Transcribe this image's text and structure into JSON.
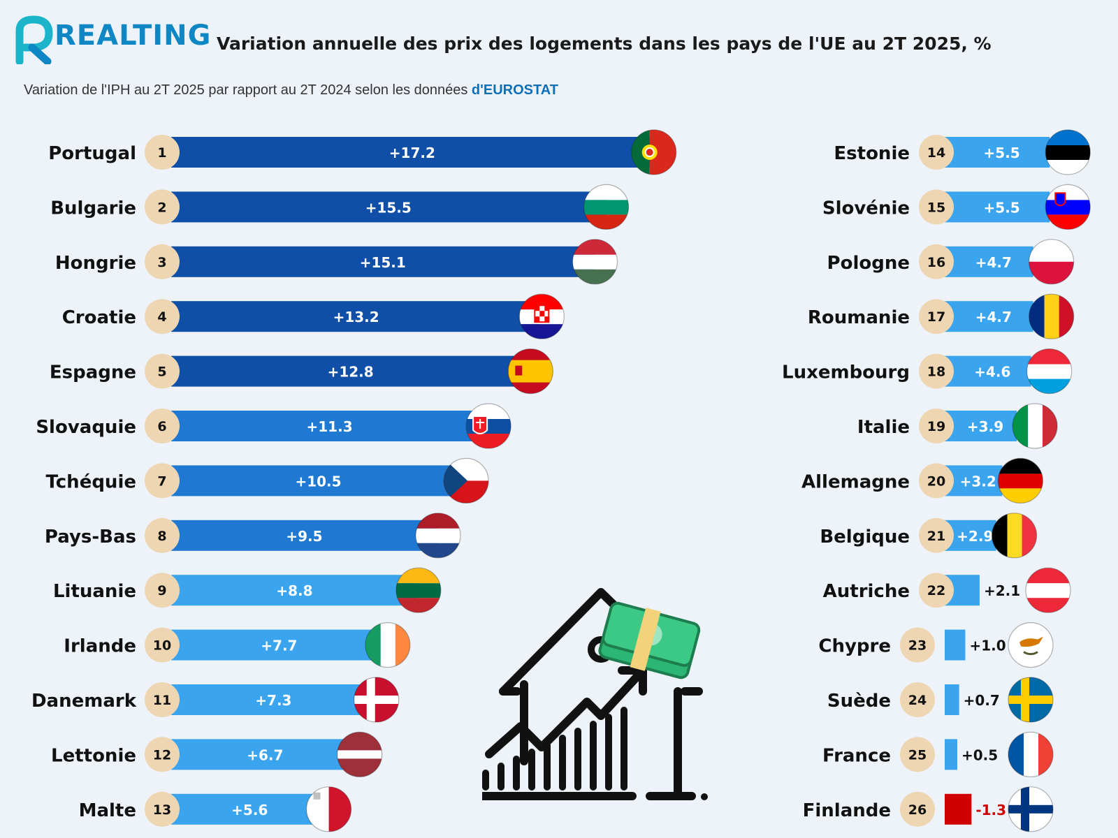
{
  "brand": "REALTING",
  "title": "Variation annuelle des prix des logements dans les pays de l'UE au 2T 2025, %",
  "subtitle_main": "Variation de l'IPH au 2T 2025 par rapport au 2T 2024 selon les données ",
  "subtitle_source": "d'EUROSTAT",
  "colors": {
    "brand": "#0e87c4",
    "bar_dark": "#0f4fa8",
    "bar_mid": "#1f78d1",
    "bar_light": "#3aa4ef",
    "negative": "#d00000",
    "rank_badge": "#efd6b3",
    "background": "#eef3fa"
  },
  "chart_data": {
    "type": "bar",
    "orientation": "horizontal",
    "title": "Variation annuelle des prix des logements dans les pays de l'UE au 2T 2025, %",
    "panels": [
      {
        "panel": "left",
        "items": [
          {
            "rank": "1",
            "country": "Portugal",
            "value": 17.2,
            "label": "+17.2",
            "flag": "portugal-flag-icon"
          },
          {
            "rank": "2",
            "country": "Bulgarie",
            "value": 15.5,
            "label": "+15.5",
            "flag": "bulgaria-flag-icon"
          },
          {
            "rank": "3",
            "country": "Hongrie",
            "value": 15.1,
            "label": "+15.1",
            "flag": "hungary-flag-icon"
          },
          {
            "rank": "4",
            "country": "Croatie",
            "value": 13.2,
            "label": "+13.2",
            "flag": "croatia-flag-icon"
          },
          {
            "rank": "5",
            "country": "Espagne",
            "value": 12.8,
            "label": "+12.8",
            "flag": "spain-flag-icon"
          },
          {
            "rank": "6",
            "country": "Slovaquie",
            "value": 11.3,
            "label": "+11.3",
            "flag": "slovakia-flag-icon"
          },
          {
            "rank": "7",
            "country": "Tchéquie",
            "value": 10.5,
            "label": "+10.5",
            "flag": "czechia-flag-icon"
          },
          {
            "rank": "8",
            "country": "Pays-Bas",
            "value": 9.5,
            "label": "+9.5",
            "flag": "netherlands-flag-icon"
          },
          {
            "rank": "9",
            "country": "Lituanie",
            "value": 8.8,
            "label": "+8.8",
            "flag": "lithuania-flag-icon"
          },
          {
            "rank": "10",
            "country": "Irlande",
            "value": 7.7,
            "label": "+7.7",
            "flag": "ireland-flag-icon"
          },
          {
            "rank": "11",
            "country": "Danemark",
            "value": 7.3,
            "label": "+7.3",
            "flag": "denmark-flag-icon"
          },
          {
            "rank": "12",
            "country": "Lettonie",
            "value": 6.7,
            "label": "+6.7",
            "flag": "latvia-flag-icon"
          },
          {
            "rank": "13",
            "country": "Malte",
            "value": 5.6,
            "label": "+5.6",
            "flag": "malta-flag-icon"
          }
        ]
      },
      {
        "panel": "right",
        "items": [
          {
            "rank": "14",
            "country": "Estonie",
            "value": 5.5,
            "label": "+5.5",
            "flag": "estonia-flag-icon"
          },
          {
            "rank": "15",
            "country": "Slovénie",
            "value": 5.5,
            "label": "+5.5",
            "flag": "slovenia-flag-icon"
          },
          {
            "rank": "16",
            "country": "Pologne",
            "value": 4.7,
            "label": "+4.7",
            "flag": "poland-flag-icon"
          },
          {
            "rank": "17",
            "country": "Roumanie",
            "value": 4.7,
            "label": "+4.7",
            "flag": "romania-flag-icon"
          },
          {
            "rank": "18",
            "country": "Luxembourg",
            "value": 4.6,
            "label": "+4.6",
            "flag": "luxembourg-flag-icon"
          },
          {
            "rank": "19",
            "country": "Italie",
            "value": 3.9,
            "label": "+3.9",
            "flag": "italy-flag-icon"
          },
          {
            "rank": "20",
            "country": "Allemagne",
            "value": 3.2,
            "label": "+3.2",
            "flag": "germany-flag-icon"
          },
          {
            "rank": "21",
            "country": "Belgique",
            "value": 2.9,
            "label": "+2.9",
            "flag": "belgium-flag-icon"
          },
          {
            "rank": "22",
            "country": "Autriche",
            "value": 2.1,
            "label": "+2.1",
            "flag": "austria-flag-icon"
          },
          {
            "rank": "23",
            "country": "Chypre",
            "value": 1.0,
            "label": "+1.0",
            "flag": "cyprus-flag-icon"
          },
          {
            "rank": "24",
            "country": "Suède",
            "value": 0.7,
            "label": "+0.7",
            "flag": "sweden-flag-icon"
          },
          {
            "rank": "25",
            "country": "France",
            "value": 0.5,
            "label": "+0.5",
            "flag": "france-flag-icon"
          },
          {
            "rank": "26",
            "country": "Finlande",
            "value": -1.3,
            "label": "-1.3",
            "flag": "finland-flag-icon"
          }
        ]
      }
    ]
  },
  "illustration": "house-price-growth-icon"
}
